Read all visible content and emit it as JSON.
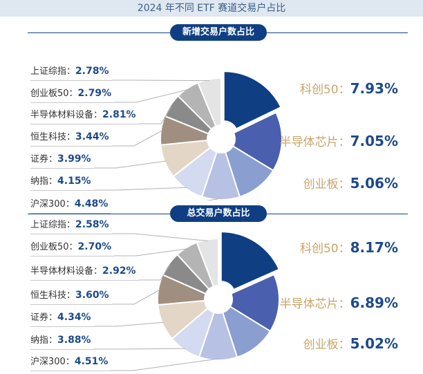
{
  "header": {
    "title": "2024 年不同 ETF 赛道交易户占比"
  },
  "chart_data": [
    {
      "type": "pie",
      "title": "新增交易户数占比",
      "slices": [
        {
          "name": "科创50",
          "value": 7.93,
          "label": "7.93%",
          "color": "#0f3f82"
        },
        {
          "name": "半导体芯片",
          "value": 7.05,
          "label": "7.05%",
          "color": "#4a5fad"
        },
        {
          "name": "创业板",
          "value": 5.06,
          "label": "5.06%",
          "color": "#8a9fd0"
        },
        {
          "name": "沪深300",
          "value": 4.48,
          "label": "4.48%",
          "color": "#b7c1e3"
        },
        {
          "name": "纳指",
          "value": 4.15,
          "label": "4.15%",
          "color": "#d4daf0"
        },
        {
          "name": "证券",
          "value": 3.99,
          "label": "3.99%",
          "color": "#e3d6c6"
        },
        {
          "name": "恒生科技",
          "value": 3.44,
          "label": "3.44%",
          "color": "#a08f80"
        },
        {
          "name": "半导体材料设备",
          "value": 2.81,
          "label": "2.81%",
          "color": "#8a8a8a"
        },
        {
          "name": "创业板50",
          "value": 2.79,
          "label": "2.79%",
          "color": "#b4b4b4"
        },
        {
          "name": "上证综指",
          "value": 2.78,
          "label": "2.78%",
          "color": "#e4e4e4"
        }
      ]
    },
    {
      "type": "pie",
      "title": "总交易户数占比",
      "slices": [
        {
          "name": "科创50",
          "value": 8.17,
          "label": "8.17%",
          "color": "#0f3f82"
        },
        {
          "name": "半导体芯片",
          "value": 6.89,
          "label": "6.89%",
          "color": "#4a5fad"
        },
        {
          "name": "创业板",
          "value": 5.02,
          "label": "5.02%",
          "color": "#8a9fd0"
        },
        {
          "name": "沪深300",
          "value": 4.51,
          "label": "4.51%",
          "color": "#b7c1e3"
        },
        {
          "name": "纳指",
          "value": 3.88,
          "label": "3.88%",
          "color": "#d4daf0"
        },
        {
          "name": "证券",
          "value": 4.34,
          "label": "4.34%",
          "color": "#e3d6c6"
        },
        {
          "name": "恒生科技",
          "value": 3.6,
          "label": "3.60%",
          "color": "#a08f80"
        },
        {
          "name": "半导体材料设备",
          "value": 2.92,
          "label": "2.92%",
          "color": "#8a8a8a"
        },
        {
          "name": "创业板50",
          "value": 2.7,
          "label": "2.70%",
          "color": "#b4b4b4"
        },
        {
          "name": "上证综指",
          "value": 2.58,
          "label": "2.58%",
          "color": "#e4e4e4"
        }
      ]
    }
  ]
}
